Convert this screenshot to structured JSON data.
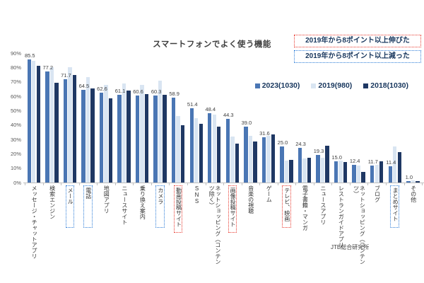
{
  "chart_data": {
    "type": "bar",
    "title": "スマートフォンでよく使う機能",
    "source": "JTB総合研究所",
    "y_axis": {
      "min": 0,
      "max": 90,
      "step": 10,
      "suffix": "%"
    },
    "grid": false,
    "legend_position": "top-right",
    "data_labels_on": "2023(1030)",
    "box_legend": {
      "red": "2019年から8ポイント以上伸びた",
      "blue": "2019年から8ポイント以上減った"
    },
    "box_colors": {
      "red": "#e8392f",
      "blue": "#2f7ed8"
    },
    "categories": [
      {
        "label": "メッセージ・チャットアプリ",
        "box": null
      },
      {
        "label": "検索エンジン",
        "box": null
      },
      {
        "label": "メール",
        "box": "blue"
      },
      {
        "label": "電話",
        "box": "blue"
      },
      {
        "label": "地図アプリ",
        "box": null
      },
      {
        "label": "ニュースサイト",
        "box": null
      },
      {
        "label": "乗り換え案内",
        "box": null
      },
      {
        "label": "カメラ",
        "box": "blue"
      },
      {
        "label": "動画投稿サイト",
        "box": "red"
      },
      {
        "label": "SNS",
        "box": null
      },
      {
        "label": "ネットショッピング（コンテンツ除く）",
        "box": null
      },
      {
        "label": "画像投稿サイト",
        "box": "red"
      },
      {
        "label": "音楽の視聴",
        "box": null
      },
      {
        "label": "ゲーム",
        "box": null
      },
      {
        "label": "テレビ、映画",
        "box": "red"
      },
      {
        "label": "電子書籍・マンガ",
        "box": null
      },
      {
        "label": "ニュースアプリ",
        "box": null
      },
      {
        "label": "レストランガイドアプリ",
        "box": null
      },
      {
        "label": "ネットショッピング（コンテンツ）",
        "box": null
      },
      {
        "label": "ブログ",
        "box": null
      },
      {
        "label": "まとめサイト",
        "box": "blue"
      },
      {
        "label": "その他",
        "box": null
      }
    ],
    "series": [
      {
        "name": "2023(1030)",
        "color": "#4a76b4",
        "values": [
          85.5,
          77.2,
          71.7,
          64.5,
          62.6,
          61.1,
          60.6,
          60.3,
          58.9,
          51.4,
          48.4,
          44.3,
          39.0,
          31.6,
          25.0,
          24.3,
          19.3,
          15.0,
          12.4,
          11.7,
          11.4,
          1.0
        ]
      },
      {
        "name": "2019(980)",
        "color": "#d9e5f2",
        "values": [
          84.7,
          80.0,
          80.2,
          73.5,
          68.0,
          68.7,
          68.0,
          71.0,
          46.1,
          44.9,
          47.0,
          32.1,
          32.6,
          32.5,
          15.4,
          16.6,
          17.0,
          15.2,
          11.7,
          12.4,
          25.2,
          1.3
        ]
      },
      {
        "name": "2018(1030)",
        "color": "#1f3864",
        "values": [
          81.0,
          69.5,
          75.0,
          65.3,
          58.4,
          63.8,
          61.3,
          61.0,
          40.0,
          40.8,
          38.9,
          27.2,
          28.5,
          33.5,
          15.8,
          17.1,
          25.5,
          14.1,
          7.5,
          14.6,
          21.1,
          1.2
        ]
      }
    ]
  }
}
